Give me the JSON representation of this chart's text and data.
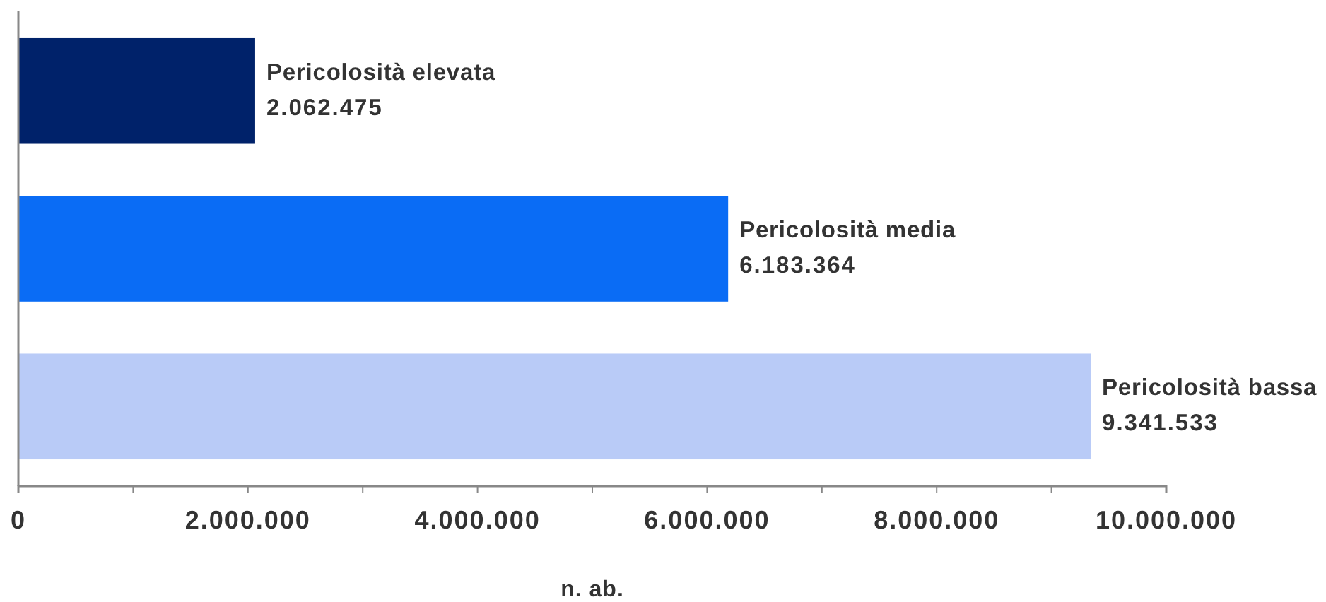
{
  "chart_data": {
    "type": "bar",
    "orientation": "horizontal",
    "categories": [
      "Pericolosità elevata",
      "Pericolosità media",
      "Pericolosità bassa"
    ],
    "values": [
      2062475,
      6183364,
      9341533
    ],
    "value_labels": [
      "2.062.475",
      "6.183.364",
      "9.341.533"
    ],
    "colors": [
      "#00226a",
      "#0a6cf5",
      "#b9cbf7"
    ],
    "xlabel": "n. ab.",
    "xlim": [
      0,
      10000000
    ],
    "xticks": [
      0,
      {
        "value": 1000000,
        "label": null
      },
      {
        "value": 2000000,
        "label": "2.000.000"
      },
      {
        "value": 3000000,
        "label": null
      },
      {
        "value": 4000000,
        "label": "4.000.000"
      },
      {
        "value": 5000000,
        "label": null
      },
      {
        "value": 6000000,
        "label": "6.000.000"
      },
      {
        "value": 7000000,
        "label": null
      },
      {
        "value": 8000000,
        "label": "8.000.000"
      },
      {
        "value": 9000000,
        "label": null
      },
      {
        "value": 10000000,
        "label": "10.000.000"
      }
    ]
  }
}
